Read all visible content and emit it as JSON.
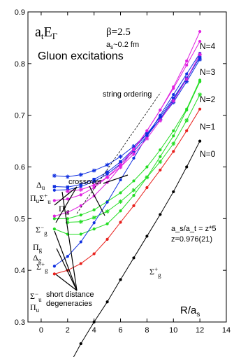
{
  "chart_data": {
    "type": "line",
    "title_main": "a",
    "title_sub_t": "t",
    "title_E": "E",
    "title_sub_Gamma": "Γ",
    "subtitle": "Gluon excitations",
    "beta_label": "β=2.5",
    "as_label_a": "a",
    "as_label_s": "s",
    "as_label_rest": "~0.2 fm",
    "ratio_label": "a_s/a_t = z*5",
    "z_label": "z=0.976(21)",
    "xlabel_R": "R/a",
    "xlabel_sub": "s",
    "xlim": [
      -1,
      14
    ],
    "ylim": [
      0.3,
      0.9
    ],
    "xticks": [
      "0",
      "2",
      "4",
      "6",
      "8",
      "10",
      "12",
      "14"
    ],
    "yticks": [
      "0.3",
      "0.4",
      "0.5",
      "0.6",
      "0.7",
      "0.8",
      "0.9"
    ],
    "grid": false,
    "annotations": {
      "string_ordering": "string ordering",
      "crossover": "crossover",
      "short_distance_1": "short distance",
      "short_distance_2": "degeneracies"
    },
    "series": [
      {
        "name": "N=0",
        "color": "#000000",
        "marker": "circle",
        "x": [
          2,
          3,
          4,
          5,
          6,
          7,
          8,
          9,
          10,
          11,
          12
        ],
        "y": [
          0.211,
          0.258,
          0.3,
          0.339,
          0.382,
          0.424,
          0.466,
          0.508,
          0.552,
          0.6,
          0.65
        ]
      },
      {
        "name": "N=1",
        "color": "#e8201c",
        "marker": "circle",
        "x": [
          1,
          2,
          3,
          4,
          5,
          6,
          7,
          8,
          9,
          10,
          11,
          12
        ],
        "y": [
          0.393,
          0.4,
          0.413,
          0.432,
          0.46,
          0.493,
          0.525,
          0.56,
          0.594,
          0.63,
          0.67,
          0.712
        ]
      },
      {
        "name": "N=2",
        "color": "#22dd22",
        "marker": "circle",
        "x": [
          1,
          2,
          3,
          4,
          5,
          6,
          7,
          8,
          9,
          10,
          11,
          12
        ],
        "y": [
          0.48,
          0.47,
          0.47,
          0.48,
          0.49,
          0.515,
          0.545,
          0.58,
          0.62,
          0.66,
          0.71,
          0.765
        ]
      },
      {
        "name": "N=2 Δg",
        "color": "#22dd22",
        "marker": "circle",
        "x": [
          1,
          2,
          3,
          4,
          5,
          6,
          7,
          8,
          9,
          10,
          11,
          12
        ],
        "y": [
          0.5,
          0.5,
          0.507,
          0.517,
          0.533,
          0.55,
          0.573,
          0.6,
          0.633,
          0.67,
          0.712,
          0.768
        ]
      },
      {
        "name": "N=2 Σg+",
        "color": "#22dd22",
        "marker": "cross",
        "x": [
          2,
          3,
          4,
          5,
          6,
          7,
          8,
          9,
          10,
          11,
          12
        ],
        "y": [
          0.493,
          0.494,
          0.502,
          0.514,
          0.533,
          0.555,
          0.58,
          0.61,
          0.645,
          0.69,
          0.74
        ]
      },
      {
        "name": "Σu-",
        "color": "#1030e0",
        "marker": "circle",
        "x": [
          1,
          2,
          3,
          4,
          5,
          6,
          7,
          8,
          9,
          10,
          11,
          12
        ],
        "y": [
          0.408,
          0.427,
          0.455,
          0.492,
          0.532,
          0.575,
          0.617,
          0.66,
          0.7,
          0.74,
          0.78,
          0.82
        ]
      },
      {
        "name": "Πu",
        "color": "#1030e0",
        "marker": "circle",
        "x": [
          1,
          2,
          3,
          4,
          5,
          6,
          7,
          8,
          9,
          10,
          11,
          12
        ],
        "y": [
          0.555,
          0.556,
          0.562,
          0.572,
          0.586,
          0.606,
          0.63,
          0.66,
          0.693,
          0.73,
          0.77,
          0.813
        ]
      },
      {
        "name": "Σu+",
        "color": "#1030e0",
        "marker": "square",
        "x": [
          1,
          2,
          3,
          4,
          5,
          6,
          7,
          8,
          9,
          10,
          11,
          12
        ],
        "y": [
          0.562,
          0.561,
          0.566,
          0.576,
          0.59,
          0.61,
          0.635,
          0.664,
          0.697,
          0.733,
          0.772,
          0.812
        ]
      },
      {
        "name": "Δu",
        "color": "#1030e0",
        "marker": "cross",
        "x": [
          1,
          2,
          3,
          4,
          5,
          6,
          7,
          8,
          9,
          10,
          11,
          12
        ],
        "y": [
          0.583,
          0.581,
          0.585,
          0.593,
          0.604,
          0.62,
          0.64,
          0.664,
          0.692,
          0.725,
          0.765,
          0.808
        ]
      },
      {
        "name": "Πg",
        "color": "#e020e0",
        "marker": "circle",
        "x": [
          1,
          2,
          3,
          4,
          5,
          6,
          7,
          8,
          9,
          10,
          11,
          12
        ],
        "y": [
          0.505,
          0.512,
          0.525,
          0.544,
          0.57,
          0.6,
          0.633,
          0.67,
          0.71,
          0.752,
          0.797,
          0.843
        ]
      },
      {
        "name": "Σg-",
        "color": "#e020e0",
        "marker": "circle",
        "x": [
          1,
          2,
          3,
          4,
          5,
          6,
          7,
          8,
          9,
          10,
          11,
          12
        ],
        "y": [
          0.535,
          0.538,
          0.546,
          0.56,
          0.58,
          0.605,
          0.635,
          0.67,
          0.71,
          0.755,
          0.805,
          0.862
        ]
      },
      {
        "name": "Πg'",
        "color": "#e020e0",
        "marker": "cross",
        "x": [
          2,
          3,
          4,
          5,
          6,
          7,
          8,
          9,
          10,
          11,
          12
        ],
        "y": [
          0.553,
          0.556,
          0.565,
          0.58,
          0.6,
          0.625,
          0.655,
          0.69,
          0.728,
          0.77,
          0.818
        ]
      }
    ],
    "end_labels": [
      "N=4",
      "N=3",
      "N=2",
      "N=1",
      "N=0"
    ],
    "state_labels": {
      "Delta_u": "Δ",
      "u": "u",
      "Pi_u_Sigma_u_plus": "Π",
      "Pi_g_prime": "Π'",
      "g": "g",
      "Sigma": "Σ",
      "minus": "−",
      "plus": "+",
      "Delta": "Δ",
      "Pi": "Π"
    }
  }
}
